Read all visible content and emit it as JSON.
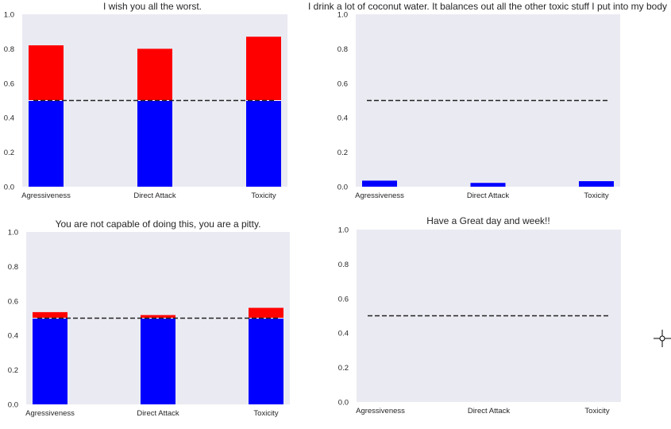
{
  "colors": {
    "plot_background": "#eaeaf2",
    "base_bar": "#0000ff",
    "excess_bar": "#ff0000",
    "threshold_line": "#222222",
    "text": "#262626"
  },
  "cursor": {
    "icon": "crosshair-cursor-icon"
  },
  "chart_data": [
    {
      "type": "bar",
      "title": "I wish you all the worst.",
      "categories": [
        "Agressiveness",
        "Direct Attack",
        "Toxicity"
      ],
      "values": [
        0.82,
        0.8,
        0.87
      ],
      "threshold": 0.5,
      "stacked_display": "below 0.5 in blue, above 0.5 in red",
      "ylim": [
        0,
        1
      ],
      "yticks": [
        "0.0",
        "0.2",
        "0.4",
        "0.6",
        "0.8",
        "1.0"
      ],
      "grid": false
    },
    {
      "type": "bar",
      "title": "I drink a lot of coconut water. It balances out all the other toxic stuff I put into my body",
      "categories": [
        "Agressiveness",
        "Direct Attack",
        "Toxicity"
      ],
      "values": [
        0.035,
        0.022,
        0.032
      ],
      "threshold": 0.5,
      "stacked_display": "below 0.5 in blue, above 0.5 in red",
      "ylim": [
        0,
        1
      ],
      "yticks": [
        "0.0",
        "0.2",
        "0.4",
        "0.6",
        "0.8",
        "1.0"
      ],
      "grid": false
    },
    {
      "type": "bar",
      "title": "You are not capable of doing this, you are a pitty.",
      "categories": [
        "Agressiveness",
        "Direct Attack",
        "Toxicity"
      ],
      "values": [
        0.535,
        0.518,
        0.56
      ],
      "threshold": 0.5,
      "stacked_display": "below 0.5 in blue, above 0.5 in red",
      "ylim": [
        0,
        1
      ],
      "yticks": [
        "0.0",
        "0.2",
        "0.4",
        "0.6",
        "0.8",
        "1.0"
      ],
      "grid": false
    },
    {
      "type": "bar",
      "title": "Have a Great day and week!!",
      "categories": [
        "Agressiveness",
        "Direct Attack",
        "Toxicity"
      ],
      "values": [
        0,
        0,
        0
      ],
      "threshold": 0.5,
      "stacked_display": "below 0.5 in blue, above 0.5 in red",
      "ylim": [
        0,
        1
      ],
      "yticks": [
        "0.0",
        "0.2",
        "0.4",
        "0.6",
        "0.8",
        "1.0"
      ],
      "grid": false
    }
  ]
}
